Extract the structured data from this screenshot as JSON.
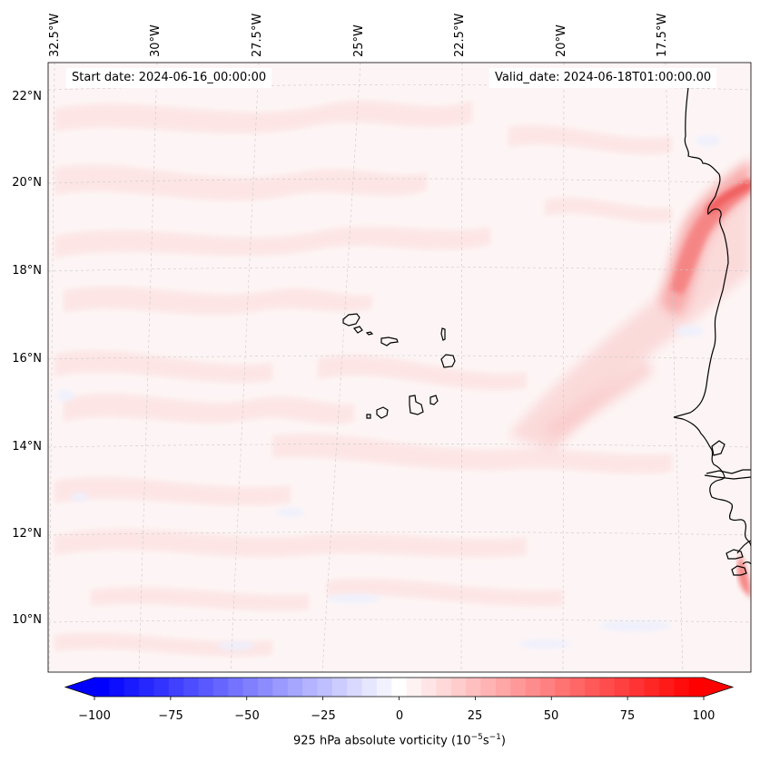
{
  "map": {
    "start_label": "Start date: 2024-06-16_00:00:00",
    "valid_label": "Valid_date: 2024-06-18T01:00:00.00",
    "lon_labels": [
      "32.5°W",
      "30°W",
      "27.5°W",
      "25°W",
      "22.5°W",
      "20°W",
      "17.5°W"
    ],
    "lat_labels": [
      "22°N",
      "20°N",
      "18°N",
      "16°N",
      "14°N",
      "12°N",
      "10°N"
    ],
    "background_color": "#fdf5f5",
    "coast_color": "#000000"
  },
  "colorbar": {
    "ticks": [
      "−100",
      "−75",
      "−50",
      "−25",
      "0",
      "25",
      "50",
      "75",
      "100"
    ],
    "tick_values": [
      -100,
      -75,
      -50,
      -25,
      0,
      25,
      50,
      75,
      100
    ],
    "min": -100,
    "max": 100,
    "levels": 41,
    "label_prefix": "925 hPa absolute vorticity (10",
    "label_exp1": "−5",
    "label_mid": "s",
    "label_exp2": "−1",
    "label_suffix": ")"
  }
}
